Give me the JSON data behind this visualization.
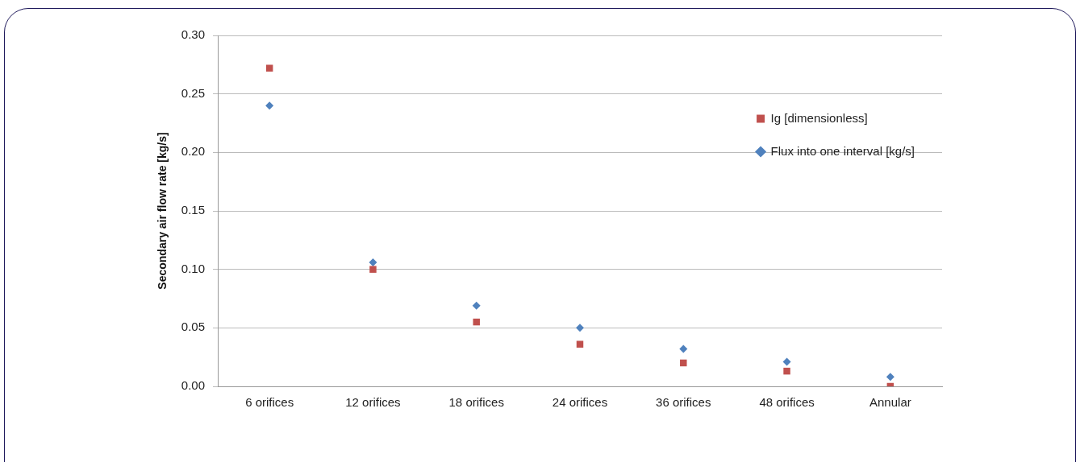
{
  "chart_data": {
    "type": "scatter",
    "ylabel": "Secondary air flow rate [kg/s]",
    "categories": [
      "6 orifices",
      "12 orifices",
      "18 orifices",
      "24 orifices",
      "36 orifices",
      "48 orifices",
      "Annular"
    ],
    "series": [
      {
        "name": "Ig [dimensionless]",
        "color": "#c0504d",
        "marker": "square",
        "values": [
          0.272,
          0.1,
          0.055,
          0.036,
          0.02,
          0.013,
          0.0
        ]
      },
      {
        "name": "Flux into one interval [kg/s]",
        "color": "#4f81bd",
        "marker": "diamond",
        "values": [
          0.24,
          0.106,
          0.069,
          0.05,
          0.032,
          0.021,
          0.008
        ]
      }
    ],
    "ylim": [
      0,
      0.3
    ],
    "yticks": [
      {
        "value": 0,
        "label": "0.00"
      },
      {
        "value": 0.05,
        "label": "0.05"
      },
      {
        "value": 0.1,
        "label": "0.10"
      },
      {
        "value": 0.15,
        "label": "0.15"
      },
      {
        "value": 0.2,
        "label": "0.20"
      },
      {
        "value": 0.25,
        "label": "0.25"
      },
      {
        "value": 0.3,
        "label": "0.30"
      }
    ],
    "grid": "y",
    "legend": "top right"
  }
}
